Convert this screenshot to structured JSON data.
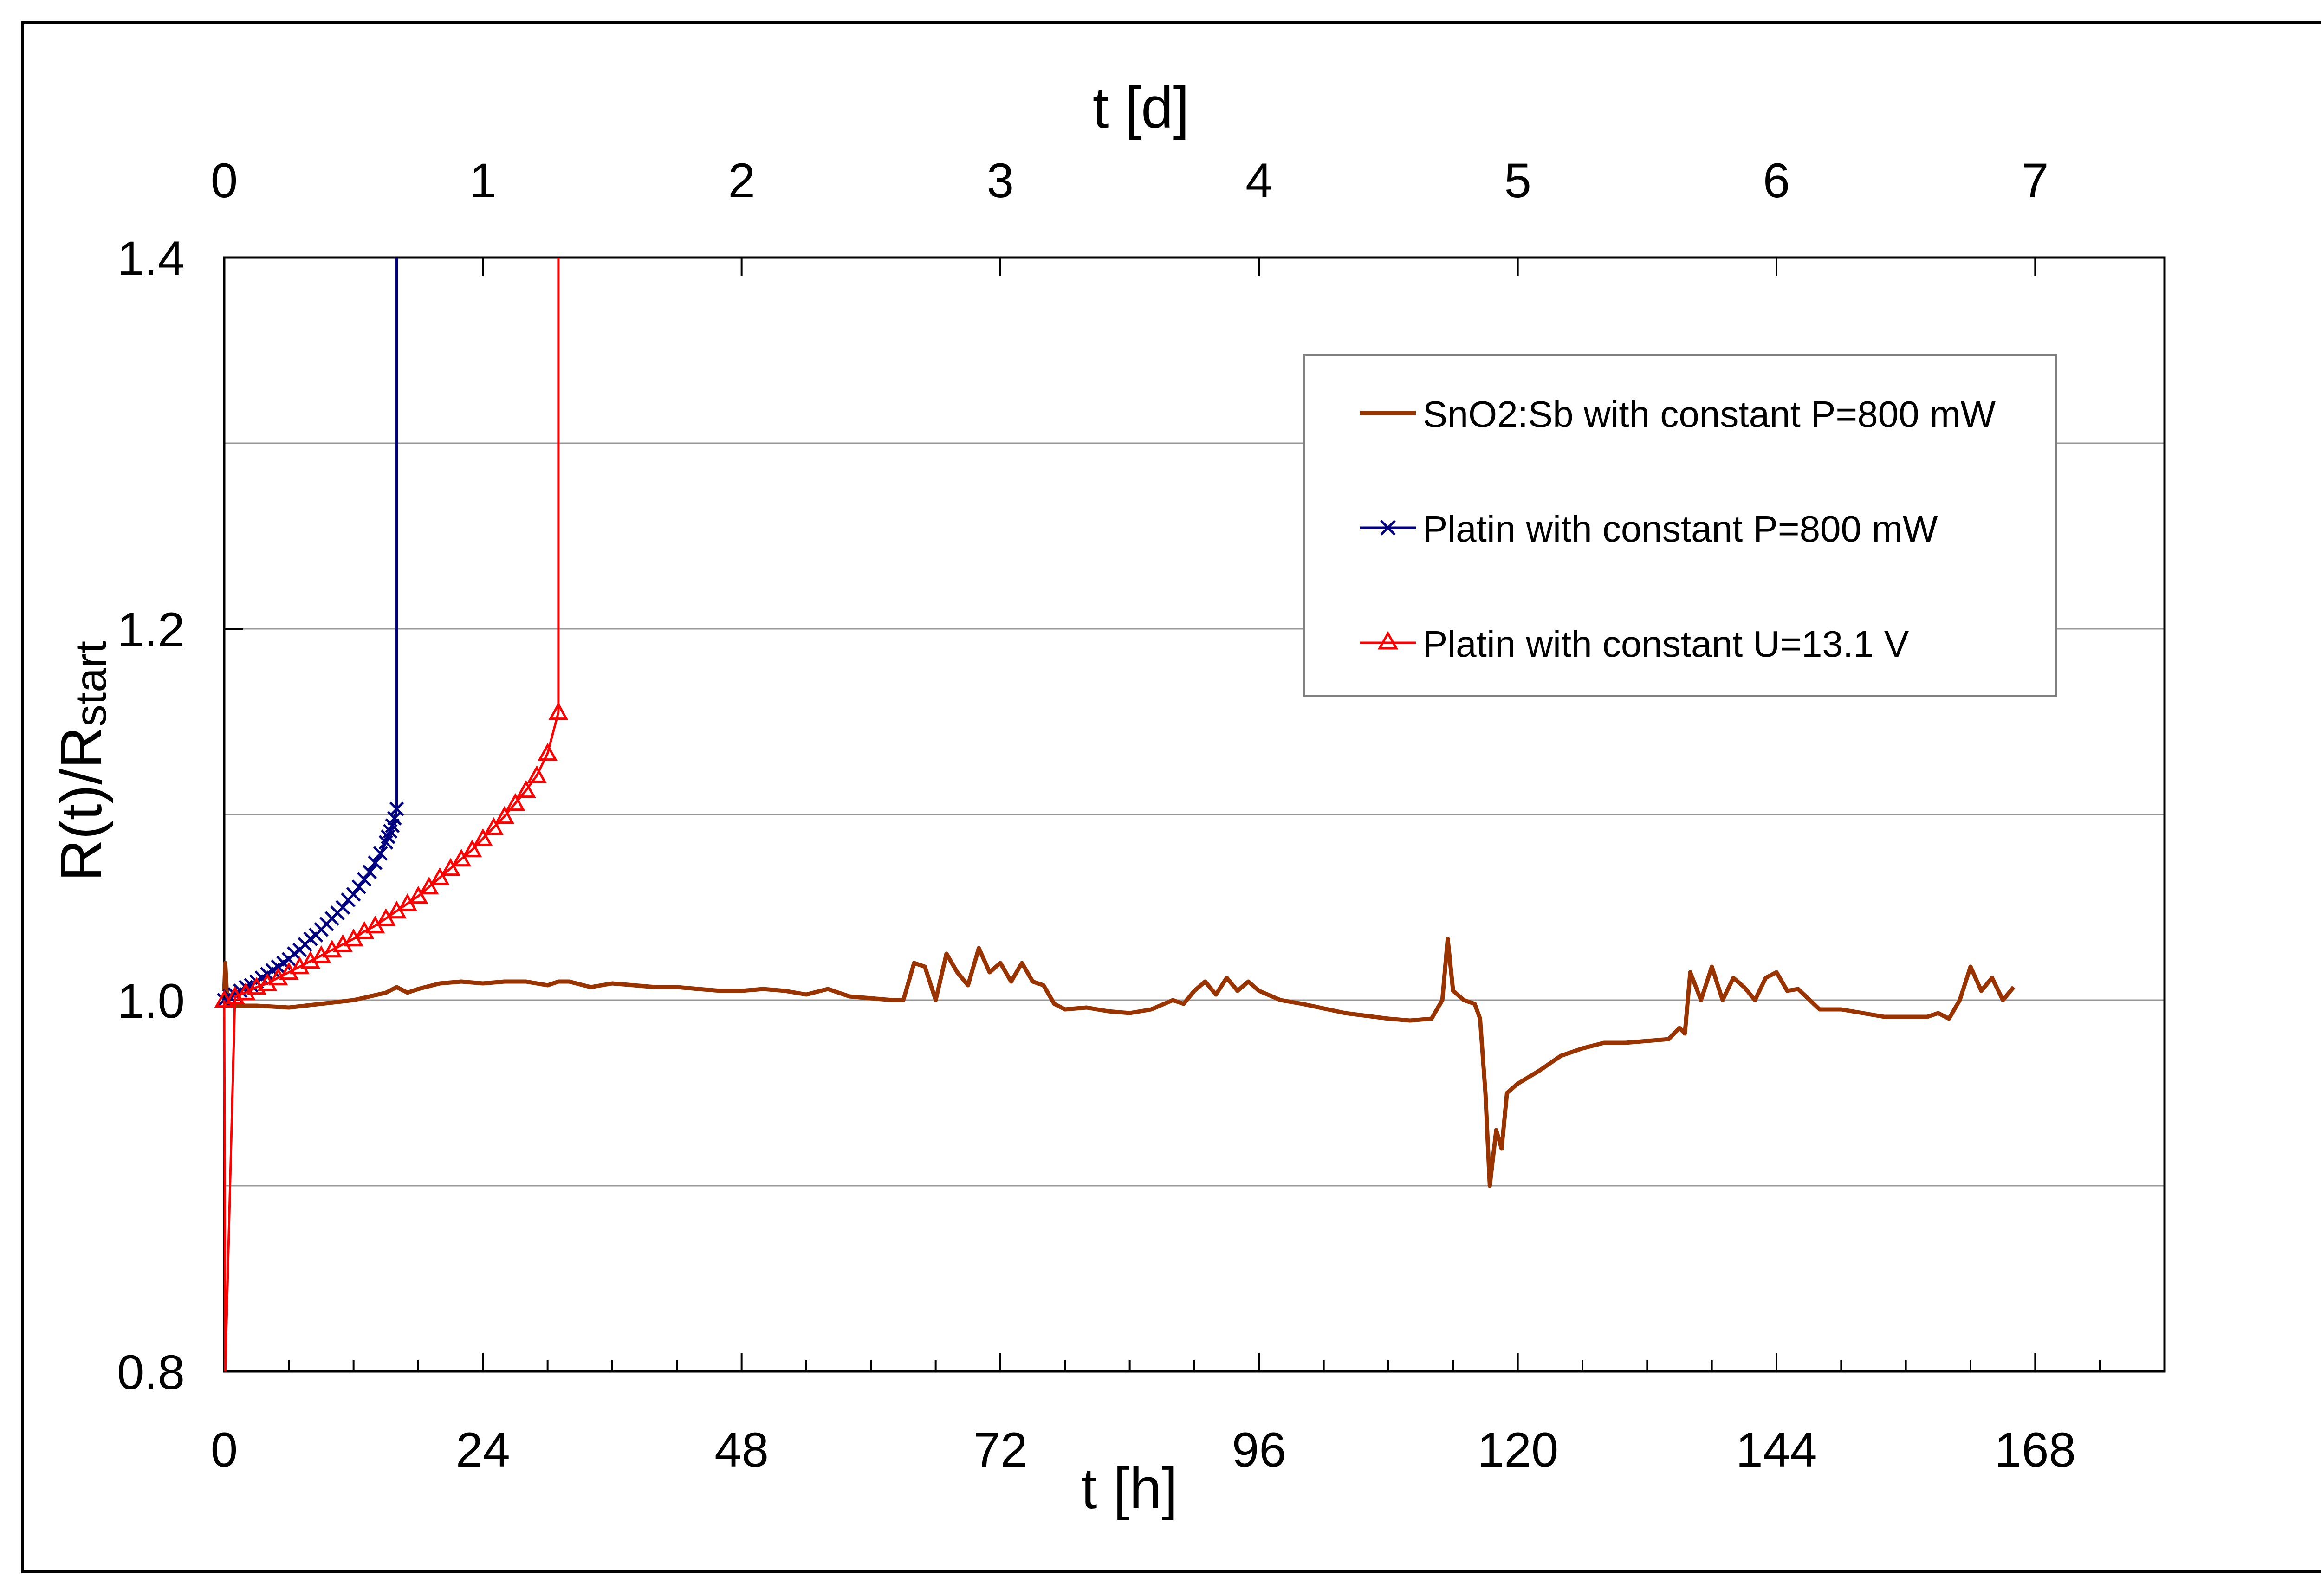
{
  "chart_data": {
    "type": "line",
    "xlabel_bottom": "t [h]",
    "xlabel_top": "t [d]",
    "ylabel_main": "R(t)/R",
    "ylabel_sub": "start",
    "xlim_hours": [
      0,
      180
    ],
    "ylim": [
      0.8,
      1.4
    ],
    "bottom_ticks": [
      "0",
      "24",
      "48",
      "72",
      "96",
      "120",
      "144",
      "168"
    ],
    "top_ticks": [
      "0",
      "1",
      "2",
      "3",
      "4",
      "5",
      "6",
      "7"
    ],
    "y_ticks": [
      "0.8",
      "1.0",
      "1.2",
      "1.4"
    ],
    "gridlines_y": [
      0.9,
      1.0,
      1.1,
      1.2,
      1.3
    ],
    "grid": true,
    "legend_position": "top-right",
    "series": [
      {
        "name": "SnO2:Sb with constant P=800 mW",
        "color": "#993300",
        "marker": "none",
        "x": [
          0,
          0.1,
          0.3,
          1,
          3,
          6,
          9,
          12,
          15,
          16,
          17,
          18,
          20,
          22,
          24,
          26,
          28,
          30,
          31,
          32,
          34,
          36,
          38,
          40,
          42,
          44,
          46,
          48,
          50,
          52,
          54,
          56,
          58,
          60,
          62,
          63,
          64,
          65,
          66,
          67,
          68,
          69,
          70,
          71,
          72,
          73,
          74,
          75,
          76,
          77,
          78,
          80,
          82,
          84,
          86,
          88,
          89,
          90,
          91,
          92,
          93,
          94,
          95,
          96,
          98,
          100,
          104,
          108,
          110,
          112,
          113,
          113.5,
          114,
          115,
          116,
          116.5,
          117,
          117.4,
          117.6,
          118,
          118.5,
          119,
          120,
          122,
          124,
          126,
          128,
          130,
          132,
          134,
          135,
          135.5,
          136,
          137,
          138,
          139,
          140,
          141,
          142,
          143,
          144,
          145,
          146,
          148,
          150,
          152,
          154,
          156,
          158,
          159,
          160,
          161,
          162,
          163,
          164,
          165,
          166
        ],
        "y": [
          1.005,
          1.02,
          0.998,
          0.997,
          0.997,
          0.996,
          0.998,
          1.0,
          1.004,
          1.007,
          1.004,
          1.006,
          1.009,
          1.01,
          1.009,
          1.01,
          1.01,
          1.008,
          1.01,
          1.01,
          1.007,
          1.009,
          1.008,
          1.007,
          1.007,
          1.006,
          1.005,
          1.005,
          1.006,
          1.005,
          1.003,
          1.006,
          1.002,
          1.001,
          1.0,
          1.0,
          1.02,
          1.018,
          1.0,
          1.025,
          1.015,
          1.008,
          1.028,
          1.015,
          1.02,
          1.01,
          1.02,
          1.01,
          1.008,
          0.998,
          0.995,
          0.996,
          0.994,
          0.993,
          0.995,
          1.0,
          0.998,
          1.005,
          1.01,
          1.003,
          1.012,
          1.005,
          1.01,
          1.005,
          1.0,
          0.998,
          0.993,
          0.99,
          0.989,
          0.99,
          1.0,
          1.033,
          1.005,
          1.0,
          0.998,
          0.99,
          0.95,
          0.9,
          0.91,
          0.93,
          0.92,
          0.95,
          0.955,
          0.962,
          0.97,
          0.974,
          0.977,
          0.977,
          0.978,
          0.979,
          0.985,
          0.982,
          1.015,
          1.0,
          1.018,
          1.0,
          1.012,
          1.007,
          1.0,
          1.012,
          1.015,
          1.005,
          1.006,
          0.995,
          0.995,
          0.993,
          0.991,
          0.991,
          0.991,
          0.993,
          0.99,
          1.0,
          1.018,
          1.005,
          1.012,
          1.0,
          1.007
        ]
      },
      {
        "name": "Platin with constant P=800 mW",
        "color": "#000080",
        "marker": "x",
        "x": [
          0,
          0.5,
          1,
          1.5,
          2,
          2.5,
          3,
          3.5,
          4,
          4.5,
          5,
          5.5,
          6,
          6.5,
          7,
          7.5,
          8,
          8.5,
          9,
          9.5,
          10,
          10.5,
          11,
          11.5,
          12,
          12.5,
          13,
          13.5,
          14,
          14.5,
          15,
          15.2,
          15.4,
          15.6,
          15.8,
          16
        ],
        "y": [
          1.0,
          1.002,
          1.003,
          1.005,
          1.007,
          1.008,
          1.01,
          1.012,
          1.014,
          1.016,
          1.018,
          1.02,
          1.022,
          1.025,
          1.027,
          1.03,
          1.033,
          1.035,
          1.038,
          1.041,
          1.044,
          1.047,
          1.05,
          1.054,
          1.057,
          1.061,
          1.065,
          1.069,
          1.074,
          1.079,
          1.085,
          1.088,
          1.091,
          1.094,
          1.098,
          1.103
        ]
      },
      {
        "name": "Platin with constant U=13.1 V",
        "color": "#ff0000",
        "marker": "triangle",
        "x": [
          0,
          1,
          2,
          3,
          4,
          5,
          6,
          7,
          8,
          9,
          10,
          11,
          12,
          13,
          14,
          15,
          16,
          17,
          18,
          19,
          20,
          21,
          22,
          23,
          24,
          25,
          26,
          27,
          28,
          29,
          30,
          31
        ],
        "y": [
          1.0,
          1.002,
          1.004,
          1.007,
          1.009,
          1.012,
          1.015,
          1.018,
          1.021,
          1.024,
          1.027,
          1.03,
          1.033,
          1.037,
          1.04,
          1.044,
          1.048,
          1.052,
          1.056,
          1.061,
          1.066,
          1.071,
          1.076,
          1.081,
          1.087,
          1.093,
          1.099,
          1.106,
          1.113,
          1.121,
          1.133,
          1.155
        ]
      }
    ],
    "annotations": [
      "Platin with constant P=800 mW: vertical rise to above 1.4 at t=16 h",
      "Platin with constant U=13.1 V: vertical rise to above 1.4 at t=31 h; initial drop below 0.8 near t=0.1 h"
    ]
  }
}
